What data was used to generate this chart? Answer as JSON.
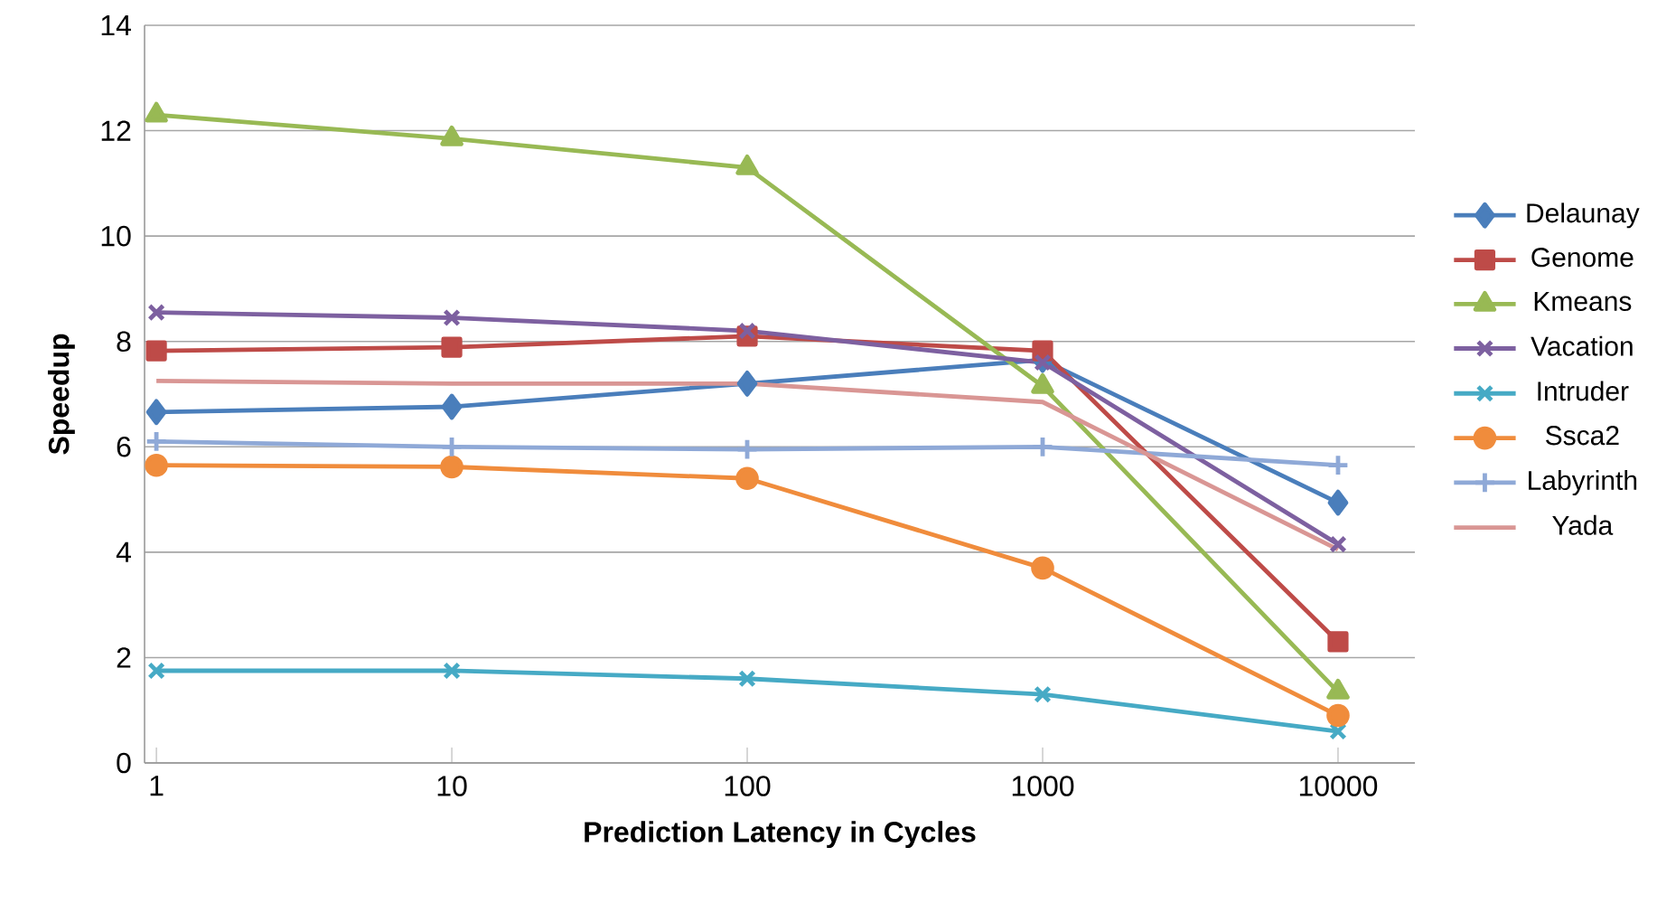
{
  "chart_data": {
    "type": "line",
    "xlabel": "Prediction Latency in Cycles",
    "ylabel": "Speedup",
    "categories": [
      "1",
      "10",
      "100",
      "1000",
      "10000"
    ],
    "ylim": [
      0,
      14
    ],
    "yticks": [
      0,
      2,
      4,
      6,
      8,
      10,
      12,
      14
    ],
    "grid": "y",
    "legend": "right",
    "line_style": "solid",
    "series": [
      {
        "name": "Delaunay",
        "color": "#4a7ebb",
        "marker": "diamond",
        "values": [
          6.66,
          6.76,
          7.2,
          7.65,
          4.94
        ]
      },
      {
        "name": "Genome",
        "color": "#be4b48",
        "marker": "square",
        "values": [
          7.82,
          7.89,
          8.1,
          7.82,
          2.3
        ]
      },
      {
        "name": "Kmeans",
        "color": "#98b954",
        "marker": "triangle",
        "values": [
          12.3,
          11.85,
          11.3,
          7.15,
          1.35
        ]
      },
      {
        "name": "Vacation",
        "color": "#7d60a0",
        "marker": "cross",
        "values": [
          8.55,
          8.45,
          8.2,
          7.6,
          4.15
        ]
      },
      {
        "name": "Intruder",
        "color": "#46aac5",
        "marker": "cross",
        "values": [
          1.75,
          1.75,
          1.6,
          1.3,
          0.6
        ]
      },
      {
        "name": "Ssca2",
        "color": "#f08c3c",
        "marker": "circle",
        "values": [
          5.65,
          5.62,
          5.4,
          3.7,
          0.9
        ]
      },
      {
        "name": "Labyrinth",
        "color": "#8fa9d7",
        "marker": "plus",
        "values": [
          6.1,
          6.0,
          5.95,
          6.0,
          5.65
        ]
      },
      {
        "name": "Yada",
        "color": "#d99694",
        "marker": "none",
        "values": [
          7.25,
          7.2,
          7.2,
          6.85,
          4.05
        ]
      }
    ]
  }
}
